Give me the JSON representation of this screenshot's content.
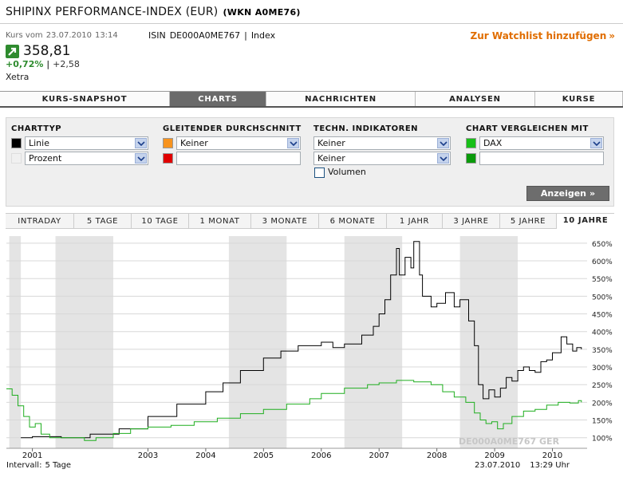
{
  "title": {
    "name": "SHIPINX PERFORMANCE-INDEX (EUR)",
    "wkn": "(WKN A0ME76)"
  },
  "quote": {
    "kurs_label": "Kurs vom",
    "kurs_date": "23.07.2010",
    "kurs_time": "13:14",
    "isin_label": "ISIN",
    "isin": "DE000A0ME767",
    "sep": "|",
    "type": "Index",
    "price": "358,81",
    "change_pct": "+0,72%",
    "change_abs": "+2,58",
    "exchange": "Xetra",
    "arrow_icon": "up-arrow-icon",
    "up_color": "#2e8b2e"
  },
  "watchlist": {
    "label": "Zur Watchlist hinzufügen",
    "chevron": "»",
    "color": "#e06d00"
  },
  "main_tabs": [
    {
      "label": "KURS-SNAPSHOT",
      "active": false
    },
    {
      "label": "CHARTS",
      "active": true
    },
    {
      "label": "NACHRICHTEN",
      "active": false
    },
    {
      "label": "ANALYSEN",
      "active": false
    },
    {
      "label": "KURSE",
      "active": false
    }
  ],
  "panel": {
    "charttyp": {
      "heading": "CHARTTYP",
      "swatch1": "#000000",
      "select1": "Linie",
      "swatch2": "#f0f0f0",
      "select2": "Prozent"
    },
    "gleitender": {
      "heading": "GLEITENDER DURCHSCHNITT",
      "swatch1": "#f7931e",
      "select1": "Keiner",
      "swatch2": "#e00000",
      "text2": ""
    },
    "indikatoren": {
      "heading": "TECHN. INDIKATOREN",
      "select1": "Keiner",
      "select2": "Keiner",
      "checkbox_label": "Volumen",
      "checked": false
    },
    "vergleich": {
      "heading": "CHART VERGLEICHEN MIT",
      "swatch1": "#18c018",
      "select1": "DAX",
      "swatch2": "#0a9a0a",
      "text2": ""
    },
    "button": {
      "label": "Anzeigen",
      "chevron": "»"
    }
  },
  "range_tabs": [
    {
      "label": "INTRADAY",
      "active": false
    },
    {
      "label": "5 TAGE",
      "active": false
    },
    {
      "label": "10 TAGE",
      "active": false
    },
    {
      "label": "1 MONAT",
      "active": false
    },
    {
      "label": "3 MONATE",
      "active": false
    },
    {
      "label": "6 MONATE",
      "active": false
    },
    {
      "label": "1 JAHR",
      "active": false
    },
    {
      "label": "3 JAHRE",
      "active": false
    },
    {
      "label": "5 JAHRE",
      "active": false
    },
    {
      "label": "10 JAHRE",
      "active": true
    }
  ],
  "chart_data": {
    "type": "line",
    "title": "",
    "xlabel": "",
    "ylabel": "",
    "y_unit": "%",
    "ylim": [
      70,
      670
    ],
    "y_ticks": [
      100,
      150,
      200,
      250,
      300,
      350,
      400,
      450,
      500,
      550,
      600,
      650
    ],
    "y_tick_labels": [
      "100%",
      "150%",
      "200%",
      "250%",
      "300%",
      "350%",
      "400%",
      "450%",
      "500%",
      "550%",
      "600%",
      "650%"
    ],
    "xlim": [
      2000.55,
      2010.6
    ],
    "x_ticks": [
      2001,
      2003,
      2004,
      2005,
      2006,
      2007,
      2008,
      2009,
      2010
    ],
    "x_tick_labels": [
      "2001",
      "2003",
      "2004",
      "2005",
      "2006",
      "2007",
      "2008",
      "2009",
      "2010"
    ],
    "shaded_bands": [
      [
        2000.6,
        2000.8
      ],
      [
        2001.4,
        2002.4
      ],
      [
        2004.4,
        2005.4
      ],
      [
        2006.4,
        2007.4
      ],
      [
        2008.4,
        2009.4
      ]
    ],
    "grid": true,
    "watermark": "DE000A0ME767  GER",
    "series": [
      {
        "name": "SHIPINX PERFORMANCE-INDEX (EUR)",
        "color": "#000000",
        "points": [
          [
            2000.8,
            100
          ],
          [
            2001.0,
            103
          ],
          [
            2001.5,
            100
          ],
          [
            2002.0,
            110
          ],
          [
            2002.5,
            125
          ],
          [
            2003.0,
            160
          ],
          [
            2003.5,
            195
          ],
          [
            2004.0,
            230
          ],
          [
            2004.3,
            255
          ],
          [
            2004.6,
            290
          ],
          [
            2005.0,
            325
          ],
          [
            2005.3,
            345
          ],
          [
            2005.6,
            360
          ],
          [
            2006.0,
            370
          ],
          [
            2006.2,
            355
          ],
          [
            2006.4,
            365
          ],
          [
            2006.7,
            390
          ],
          [
            2006.9,
            415
          ],
          [
            2007.0,
            450
          ],
          [
            2007.1,
            490
          ],
          [
            2007.2,
            560
          ],
          [
            2007.3,
            635
          ],
          [
            2007.35,
            560
          ],
          [
            2007.45,
            610
          ],
          [
            2007.55,
            580
          ],
          [
            2007.6,
            655
          ],
          [
            2007.7,
            560
          ],
          [
            2007.75,
            500
          ],
          [
            2007.9,
            470
          ],
          [
            2008.0,
            480
          ],
          [
            2008.15,
            510
          ],
          [
            2008.3,
            470
          ],
          [
            2008.4,
            490
          ],
          [
            2008.55,
            430
          ],
          [
            2008.65,
            360
          ],
          [
            2008.72,
            250
          ],
          [
            2008.8,
            210
          ],
          [
            2008.9,
            235
          ],
          [
            2009.0,
            215
          ],
          [
            2009.1,
            240
          ],
          [
            2009.2,
            270
          ],
          [
            2009.3,
            260
          ],
          [
            2009.4,
            290
          ],
          [
            2009.5,
            300
          ],
          [
            2009.6,
            290
          ],
          [
            2009.7,
            285
          ],
          [
            2009.8,
            315
          ],
          [
            2009.9,
            320
          ],
          [
            2010.0,
            340
          ],
          [
            2010.15,
            385
          ],
          [
            2010.25,
            365
          ],
          [
            2010.35,
            345
          ],
          [
            2010.42,
            355
          ],
          [
            2010.5,
            350
          ]
        ]
      },
      {
        "name": "DAX",
        "color": "#1fae1f",
        "points": [
          [
            2000.55,
            238
          ],
          [
            2000.65,
            220
          ],
          [
            2000.75,
            190
          ],
          [
            2000.85,
            160
          ],
          [
            2000.95,
            130
          ],
          [
            2001.05,
            140
          ],
          [
            2001.15,
            110
          ],
          [
            2001.3,
            100
          ],
          [
            2001.6,
            100
          ],
          [
            2001.9,
            92
          ],
          [
            2002.1,
            100
          ],
          [
            2002.4,
            112
          ],
          [
            2002.7,
            125
          ],
          [
            2003.0,
            130
          ],
          [
            2003.4,
            135
          ],
          [
            2003.8,
            145
          ],
          [
            2004.2,
            155
          ],
          [
            2004.6,
            168
          ],
          [
            2005.0,
            180
          ],
          [
            2005.4,
            195
          ],
          [
            2005.8,
            210
          ],
          [
            2006.0,
            225
          ],
          [
            2006.4,
            240
          ],
          [
            2006.8,
            250
          ],
          [
            2007.0,
            255
          ],
          [
            2007.3,
            262
          ],
          [
            2007.6,
            258
          ],
          [
            2007.9,
            250
          ],
          [
            2008.1,
            230
          ],
          [
            2008.3,
            215
          ],
          [
            2008.5,
            200
          ],
          [
            2008.65,
            170
          ],
          [
            2008.75,
            150
          ],
          [
            2008.85,
            140
          ],
          [
            2008.95,
            145
          ],
          [
            2009.05,
            125
          ],
          [
            2009.15,
            140
          ],
          [
            2009.3,
            160
          ],
          [
            2009.5,
            175
          ],
          [
            2009.7,
            180
          ],
          [
            2009.9,
            192
          ],
          [
            2010.1,
            200
          ],
          [
            2010.3,
            198
          ],
          [
            2010.45,
            205
          ],
          [
            2010.5,
            200
          ]
        ]
      }
    ]
  },
  "footer": {
    "interval_label": "Intervall:",
    "interval": "5 Tage",
    "date": "23.07.2010",
    "time": "13:29 Uhr"
  }
}
